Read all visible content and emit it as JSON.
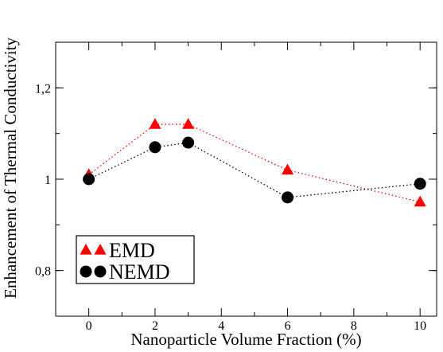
{
  "chart_data": {
    "type": "line",
    "xlabel": "Nanoparticle Volume Fraction (%)",
    "ylabel": "Enhancement of Thermal Conductivity",
    "xlim": [
      -1,
      10.5
    ],
    "ylim": [
      0.7,
      1.3
    ],
    "x_ticks": [
      0,
      2,
      4,
      6,
      8,
      10
    ],
    "x_tick_labels": [
      "0",
      "2",
      "4",
      "6",
      "8",
      "10"
    ],
    "y_ticks": [
      0.8,
      1.0,
      1.2
    ],
    "y_tick_labels": [
      "0,8",
      "1",
      "1,2"
    ],
    "grid": false,
    "legend_position": "bottom-left",
    "series": [
      {
        "name": "EMD",
        "color": "#ff0000",
        "marker": "triangle",
        "line_style": "dotted",
        "x": [
          0,
          2,
          3,
          6,
          10
        ],
        "y": [
          1.01,
          1.12,
          1.12,
          1.02,
          0.95
        ]
      },
      {
        "name": "NEMD",
        "color": "#000000",
        "marker": "circle",
        "line_style": "dotted",
        "x": [
          0,
          2,
          3,
          6,
          10
        ],
        "y": [
          1.0,
          1.07,
          1.08,
          0.96,
          0.99
        ]
      }
    ]
  }
}
